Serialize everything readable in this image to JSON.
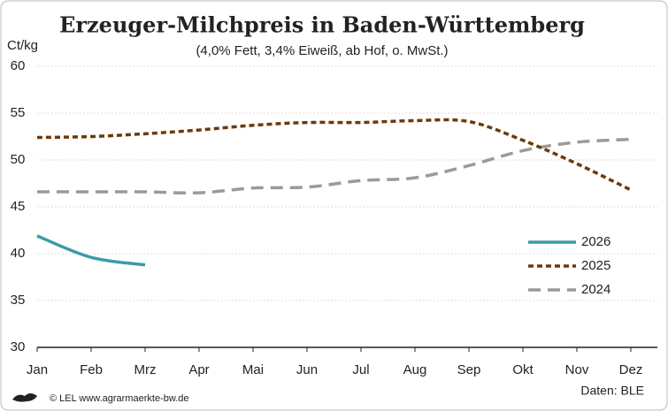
{
  "chart_data": {
    "type": "line",
    "title": "Erzeuger-Milchpreis in Baden-Württemberg",
    "subtitle": "(4,0% Fett, 3,4% Eiweiß, ab Hof, o. MwSt.)",
    "y_label": "Ct/kg",
    "categories": [
      "Jan",
      "Feb",
      "Mrz",
      "Apr",
      "Mai",
      "Jun",
      "Jul",
      "Aug",
      "Sep",
      "Okt",
      "Nov",
      "Dez"
    ],
    "series": [
      {
        "name": "2026",
        "color": "#3a9ca8",
        "dash": "solid",
        "values": [
          41.9,
          39.6,
          38.8,
          null,
          null,
          null,
          null,
          null,
          null,
          null,
          null,
          null
        ]
      },
      {
        "name": "2025",
        "color": "#6b3a0b",
        "dash": "dotted",
        "values": [
          52.4,
          52.5,
          52.8,
          53.2,
          53.7,
          54.0,
          54.0,
          54.2,
          54.1,
          52.1,
          49.6,
          46.8
        ]
      },
      {
        "name": "2024",
        "color": "#9a9a9a",
        "dash": "dashed",
        "values": [
          46.6,
          46.6,
          46.6,
          46.5,
          47.0,
          47.1,
          47.8,
          48.1,
          49.4,
          51.0,
          51.9,
          52.2
        ]
      }
    ],
    "ylim": [
      30,
      60
    ],
    "yticks": [
      30,
      35,
      40,
      45,
      50,
      55,
      60
    ],
    "grid": true,
    "legend": "right",
    "source": "Daten: BLE",
    "credit": "© LEL www.agrarmaerkte-bw.de"
  }
}
